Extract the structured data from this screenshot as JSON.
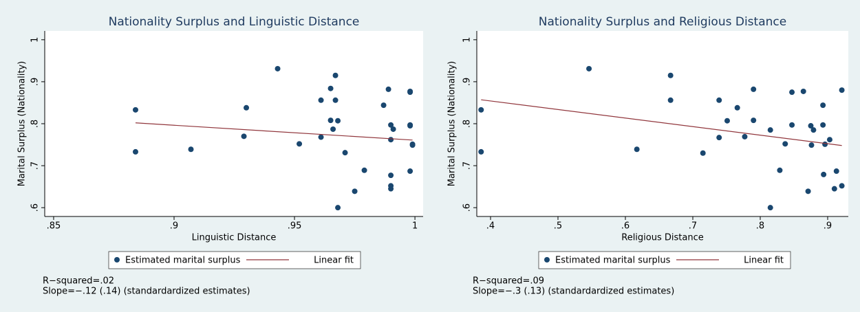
{
  "chart_data": [
    {
      "type": "scatter",
      "title": "Nationality Surplus and Linguistic Distance",
      "xlabel": "Linguistic Distance",
      "ylabel": "Marital Surplus (Nationality)",
      "xlim": [
        0.8463,
        1.0034
      ],
      "ylim": [
        0.579,
        1.021
      ],
      "xticks": [
        {
          "value": 0.85,
          "label": ".85"
        },
        {
          "value": 0.9,
          "label": ".9"
        },
        {
          "value": 0.95,
          "label": ".95"
        },
        1
      ],
      "yticks": [
        {
          "value": 0.6,
          "label": ".6"
        },
        {
          "value": 0.7,
          "label": ".7"
        },
        {
          "value": 0.8,
          "label": ".8"
        },
        {
          "value": 0.9,
          "label": ".9"
        },
        1
      ],
      "grid": false,
      "series": [
        {
          "name": "Estimated marital surplus",
          "kind": "scatter",
          "color": "#1a476f",
          "x": [
            0.884,
            0.884,
            0.907,
            0.929,
            0.93,
            0.943,
            0.952,
            0.961,
            0.961,
            0.965,
            0.965,
            0.966,
            0.967,
            0.967,
            0.968,
            0.968,
            0.971,
            0.975,
            0.979,
            0.987,
            0.989,
            0.99,
            0.99,
            0.991,
            0.99,
            0.99,
            0.99,
            0.998,
            0.998,
            0.998,
            0.998,
            0.999,
            0.999,
            0.998
          ],
          "values": [
            0.833,
            0.733,
            0.739,
            0.77,
            0.838,
            0.931,
            0.752,
            0.856,
            0.768,
            0.884,
            0.808,
            0.787,
            0.915,
            0.856,
            0.807,
            0.6,
            0.731,
            0.639,
            0.689,
            0.844,
            0.882,
            0.797,
            0.762,
            0.787,
            0.677,
            0.652,
            0.645,
            0.877,
            0.875,
            0.797,
            0.795,
            0.751,
            0.749,
            0.687
          ]
        },
        {
          "name": "Linear fit",
          "kind": "line",
          "color": "#90353b",
          "x": [
            0.884,
            0.999
          ],
          "values": [
            0.802,
            0.761
          ]
        }
      ],
      "notes": [
        "R−squared=.02",
        "Slope=−.12 (.14) (standardardized estimates)"
      ]
    },
    {
      "type": "scatter",
      "title": "Nationality Surplus and Religious Distance",
      "xlabel": "Religious Distance",
      "ylabel": "Marital Surplus (Nationality)",
      "xlim": [
        0.3796,
        0.9306
      ],
      "ylim": [
        0.579,
        1.021
      ],
      "xticks": [
        {
          "value": 0.4,
          "label": ".4"
        },
        {
          "value": 0.5,
          "label": ".5"
        },
        {
          "value": 0.6,
          "label": ".6"
        },
        {
          "value": 0.7,
          "label": ".7"
        },
        {
          "value": 0.8,
          "label": ".8"
        },
        {
          "value": 0.9,
          "label": ".9"
        }
      ],
      "yticks": [
        {
          "value": 0.6,
          "label": ".6"
        },
        {
          "value": 0.7,
          "label": ".7"
        },
        {
          "value": 0.8,
          "label": ".8"
        },
        {
          "value": 0.9,
          "label": ".9"
        },
        1
      ],
      "grid": false,
      "series": [
        {
          "name": "Estimated marital surplus",
          "kind": "scatter",
          "color": "#1a476f",
          "x": [
            0.386,
            0.386,
            0.546,
            0.617,
            0.667,
            0.667,
            0.715,
            0.739,
            0.739,
            0.751,
            0.766,
            0.777,
            0.79,
            0.79,
            0.815,
            0.815,
            0.829,
            0.837,
            0.847,
            0.847,
            0.864,
            0.871,
            0.875,
            0.876,
            0.879,
            0.893,
            0.893,
            0.894,
            0.896,
            0.903,
            0.91,
            0.913,
            0.921,
            0.921
          ],
          "values": [
            0.833,
            0.733,
            0.931,
            0.739,
            0.915,
            0.856,
            0.73,
            0.856,
            0.767,
            0.807,
            0.838,
            0.769,
            0.882,
            0.808,
            0.785,
            0.6,
            0.689,
            0.752,
            0.797,
            0.875,
            0.877,
            0.639,
            0.795,
            0.749,
            0.785,
            0.844,
            0.797,
            0.679,
            0.751,
            0.762,
            0.645,
            0.687,
            0.88,
            0.652
          ]
        },
        {
          "name": "Linear fit",
          "kind": "line",
          "color": "#90353b",
          "x": [
            0.386,
            0.921
          ],
          "values": [
            0.857,
            0.748
          ]
        }
      ],
      "notes": [
        "R−squared=.09",
        "Slope=−.3 (.13) (standardardized estimates)"
      ]
    }
  ]
}
